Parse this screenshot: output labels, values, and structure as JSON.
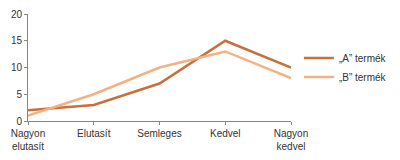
{
  "chart_data": {
    "type": "line",
    "categories": [
      "Nagyon elutasít",
      "Elutasít",
      "Semleges",
      "Kedvel",
      "Nagyon kedvel"
    ],
    "series": [
      {
        "name": "„A” termék",
        "color": "#c8703c",
        "values": [
          2,
          3,
          7,
          15,
          10
        ]
      },
      {
        "name": "„B” termék",
        "color": "#f4b183",
        "values": [
          1,
          5,
          10,
          13,
          8
        ]
      }
    ],
    "ylim": [
      0,
      20
    ],
    "yticks": [
      0,
      5,
      10,
      15,
      20
    ],
    "grid": false,
    "legend": "right"
  }
}
